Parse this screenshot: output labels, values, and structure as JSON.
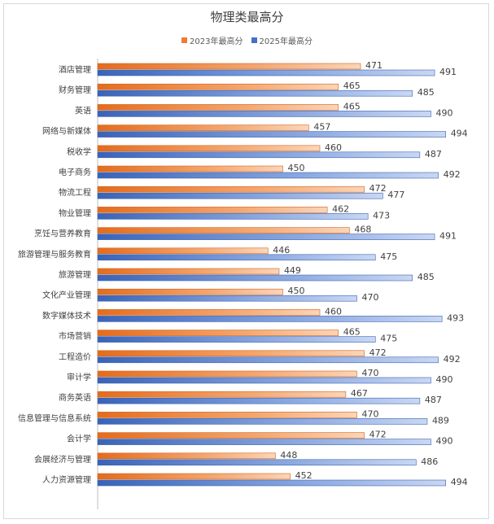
{
  "chart_data": {
    "type": "bar",
    "orientation": "horizontal",
    "title": "物理类最高分",
    "categories": [
      "酒店管理",
      "财务管理",
      "英语",
      "网络与新媒体",
      "税收学",
      "电子商务",
      "物流工程",
      "物业管理",
      "烹饪与营养教育",
      "旅游管理与服务教育",
      "旅游管理",
      "文化产业管理",
      "数字媒体技术",
      "市场营销",
      "工程造价",
      "审计学",
      "商务英语",
      "信息管理与信息系统",
      "会计学",
      "会展经济与管理",
      "人力资源管理"
    ],
    "series": [
      {
        "name": "2023年最高分",
        "color": "#ed7d31",
        "values": [
          471,
          465,
          465,
          457,
          460,
          450,
          472,
          462,
          468,
          446,
          449,
          450,
          460,
          465,
          472,
          470,
          467,
          470,
          472,
          448,
          452
        ]
      },
      {
        "name": "2025年最高分",
        "color": "#4472c4",
        "values": [
          491,
          485,
          490,
          494,
          487,
          492,
          477,
          473,
          491,
          475,
          485,
          470,
          493,
          475,
          492,
          490,
          487,
          489,
          490,
          486,
          494
        ]
      }
    ],
    "xlim": [
      400,
      500
    ],
    "grid": false,
    "legend": "top"
  }
}
